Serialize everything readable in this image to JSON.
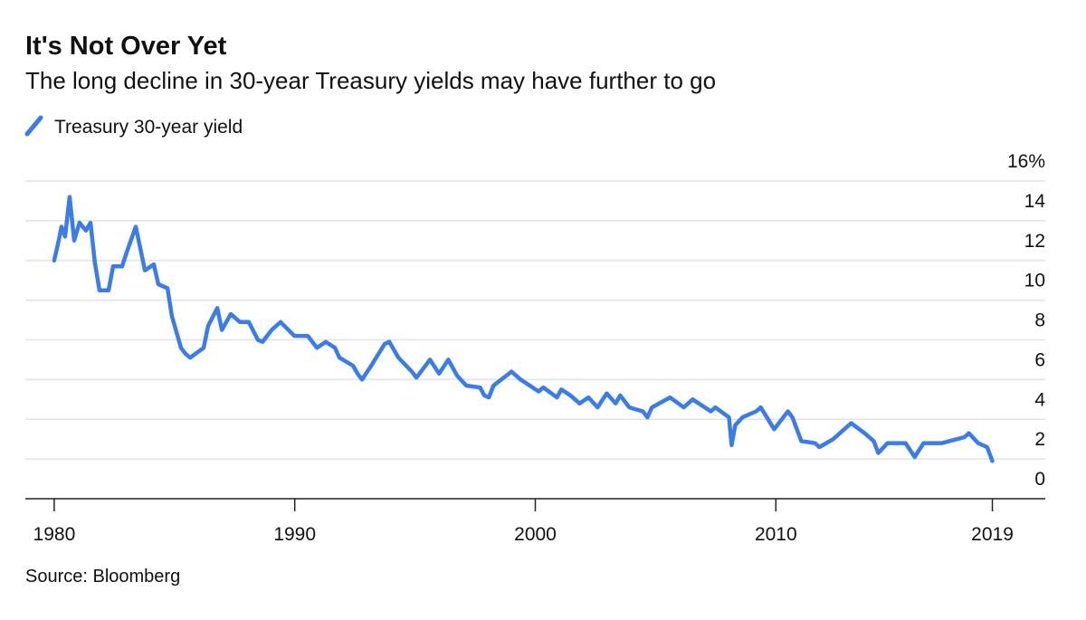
{
  "chart_data": {
    "type": "line",
    "title": "It's Not Over Yet",
    "subtitle": "The long decline in 30-year Treasury yields may have further to go",
    "source": "Source: Bloomberg",
    "x": [
      1980.0,
      1980.19,
      1980.3,
      1980.45,
      1980.64,
      1980.83,
      1981.05,
      1981.32,
      1981.51,
      1981.69,
      1981.88,
      1982.26,
      1982.45,
      1982.82,
      1983.01,
      1983.39,
      1983.58,
      1983.77,
      1984.14,
      1984.33,
      1984.71,
      1984.89,
      1985.27,
      1985.46,
      1985.65,
      1986.21,
      1986.4,
      1986.78,
      1986.97,
      1987.34,
      1987.72,
      1988.09,
      1988.47,
      1988.66,
      1989.04,
      1989.41,
      1989.98,
      1990.54,
      1990.92,
      1991.29,
      1991.67,
      1991.86,
      1992.42,
      1992.61,
      1992.8,
      1993.18,
      1993.74,
      1993.93,
      1994.31,
      1994.87,
      1995.06,
      1995.62,
      1996.0,
      1996.38,
      1996.75,
      1997.13,
      1997.7,
      1997.88,
      1998.07,
      1998.26,
      1999.01,
      1999.39,
      2000.14,
      2000.33,
      2000.9,
      2001.08,
      2001.46,
      2001.84,
      2002.21,
      2002.59,
      2002.97,
      2003.34,
      2003.53,
      2003.91,
      2004.47,
      2004.66,
      2004.85,
      2005.6,
      2006.17,
      2006.54,
      2007.3,
      2007.48,
      2008.05,
      2008.16,
      2008.31,
      2008.61,
      2009.18,
      2009.37,
      2009.93,
      2010.5,
      2010.69,
      2011.06,
      2011.63,
      2011.81,
      2012.38,
      2013.13,
      2013.69,
      2014.07,
      2014.26,
      2014.64,
      2015.39,
      2015.77,
      2016.14,
      2016.9,
      2017.84,
      2018.03,
      2018.41,
      2018.78,
      2019.0
    ],
    "series": [
      {
        "name": "Treasury 30-year yield",
        "color": "#3a7de8",
        "values": [
          12.0,
          13.0,
          13.7,
          13.2,
          15.2,
          13.0,
          13.9,
          13.5,
          13.9,
          11.9,
          10.5,
          10.5,
          11.7,
          11.7,
          12.4,
          13.7,
          12.6,
          11.5,
          11.8,
          10.8,
          10.6,
          9.2,
          7.6,
          7.3,
          7.1,
          7.6,
          8.7,
          9.6,
          8.5,
          9.3,
          8.9,
          8.9,
          8.0,
          7.9,
          8.5,
          8.9,
          8.2,
          8.2,
          7.6,
          7.9,
          7.6,
          7.1,
          6.7,
          6.3,
          6.0,
          6.7,
          7.8,
          7.9,
          7.1,
          6.4,
          6.1,
          7.0,
          6.3,
          7.0,
          6.2,
          5.7,
          5.6,
          5.2,
          5.1,
          5.7,
          6.4,
          6.0,
          5.4,
          5.6,
          5.1,
          5.5,
          5.2,
          4.8,
          5.1,
          4.6,
          5.3,
          4.8,
          5.2,
          4.6,
          4.4,
          4.1,
          4.6,
          5.1,
          4.6,
          5.0,
          4.4,
          4.6,
          4.1,
          2.7,
          3.7,
          4.1,
          4.4,
          4.6,
          3.5,
          4.4,
          4.1,
          2.9,
          2.8,
          2.6,
          3.0,
          3.8,
          3.3,
          2.9,
          2.3,
          2.8,
          2.8,
          2.1,
          2.8,
          2.8,
          3.1,
          3.3,
          2.8,
          2.6,
          1.9
        ]
      }
    ],
    "xlim": [
      1978.8,
      2021.2
    ],
    "xticks": [
      1980,
      1990,
      2000,
      2010,
      2019
    ],
    "ylim": [
      0,
      16
    ],
    "yticks": [
      0,
      2,
      4,
      6,
      8,
      10,
      12,
      14,
      {
        "value": 16,
        "label": "16%"
      }
    ],
    "grid": true
  }
}
